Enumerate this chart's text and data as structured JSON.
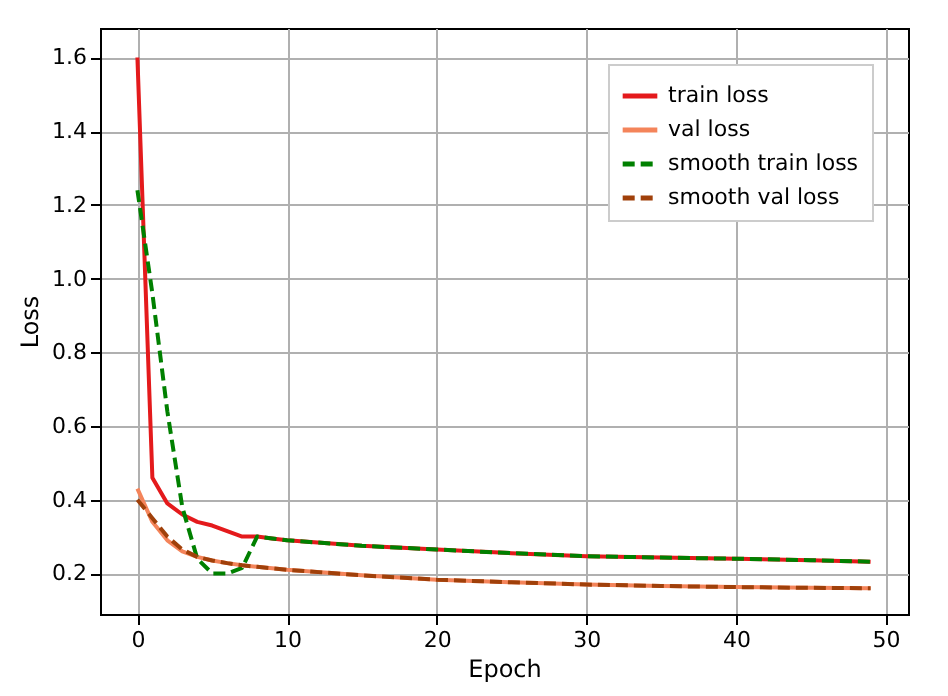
{
  "chart_data": {
    "type": "line",
    "xlabel": "Epoch",
    "ylabel": "Loss",
    "xlim": [
      -2.5,
      51.5
    ],
    "ylim": [
      0.09,
      1.68
    ],
    "xticks": [
      0,
      10,
      20,
      30,
      40,
      50
    ],
    "yticks": [
      0.2,
      0.4,
      0.6,
      0.8,
      {
        "value": 1.0,
        "label": "1.0"
      },
      1.2,
      1.4,
      1.6
    ],
    "grid": true,
    "legend": "top right",
    "series": [
      {
        "name": "train loss",
        "color": "#e41a1c",
        "line_style": "solid",
        "x": [
          0,
          1,
          2,
          3,
          4,
          5,
          6,
          7,
          8,
          9,
          10,
          15,
          20,
          25,
          30,
          35,
          40,
          45,
          49
        ],
        "values": [
          1.6,
          0.46,
          0.39,
          0.36,
          0.34,
          0.33,
          0.315,
          0.3,
          0.3,
          0.295,
          0.29,
          0.275,
          0.265,
          0.255,
          0.247,
          0.243,
          0.24,
          0.236,
          0.232
        ]
      },
      {
        "name": "val loss",
        "color": "#f4845a",
        "line_style": "solid",
        "x": [
          0,
          1,
          2,
          3,
          4,
          5,
          6,
          7,
          8,
          9,
          10,
          15,
          20,
          25,
          30,
          35,
          40,
          45,
          49
        ],
        "values": [
          0.43,
          0.34,
          0.29,
          0.26,
          0.245,
          0.235,
          0.228,
          0.222,
          0.218,
          0.214,
          0.21,
          0.195,
          0.183,
          0.176,
          0.17,
          0.166,
          0.163,
          0.161,
          0.16
        ]
      },
      {
        "name": "smooth train loss",
        "color": "#008000",
        "line_style": "dashed",
        "x": [
          0,
          1,
          2,
          3,
          4,
          5,
          6,
          7,
          8,
          9,
          10,
          15,
          20,
          25,
          30,
          35,
          40,
          45,
          49
        ],
        "values": [
          1.24,
          0.96,
          0.64,
          0.38,
          0.24,
          0.2,
          0.2,
          0.215,
          0.3,
          0.295,
          0.29,
          0.275,
          0.265,
          0.255,
          0.247,
          0.243,
          0.24,
          0.236,
          0.232
        ]
      },
      {
        "name": "smooth val loss",
        "color": "#a0400a",
        "line_style": "dashed",
        "x": [
          0,
          1,
          2,
          3,
          4,
          5,
          6,
          7,
          8,
          9,
          10,
          15,
          20,
          25,
          30,
          35,
          40,
          45,
          49
        ],
        "values": [
          0.4,
          0.35,
          0.3,
          0.265,
          0.245,
          0.235,
          0.228,
          0.222,
          0.218,
          0.214,
          0.21,
          0.195,
          0.183,
          0.176,
          0.17,
          0.166,
          0.163,
          0.161,
          0.16
        ]
      }
    ]
  }
}
